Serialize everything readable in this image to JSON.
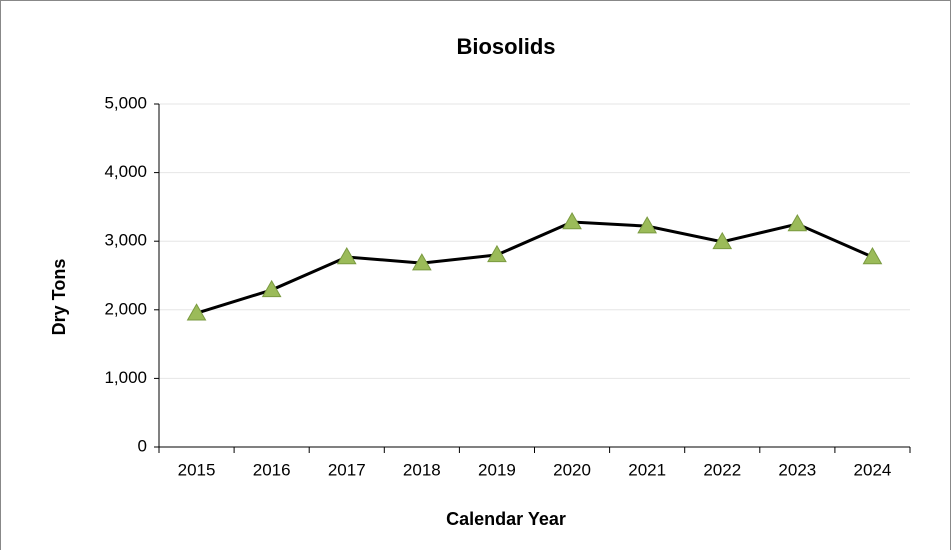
{
  "chart_data": {
    "type": "line",
    "title": "Biosolids",
    "xlabel": "Calendar Year",
    "ylabel": "Dry Tons",
    "categories": [
      "2015",
      "2016",
      "2017",
      "2018",
      "2019",
      "2020",
      "2021",
      "2022",
      "2023",
      "2024"
    ],
    "values": [
      1950,
      2290,
      2770,
      2680,
      2800,
      3280,
      3220,
      2990,
      3250,
      2770
    ],
    "color": "#000000",
    "marker": "triangle",
    "marker_color": "#9bbb59",
    "ylim": [
      0,
      5000
    ],
    "yticks": [
      0,
      {
        "value": 1000,
        "label": "1,000"
      },
      {
        "value": 2000,
        "label": "2,000"
      },
      {
        "value": 3000,
        "label": "3,000"
      },
      {
        "value": 4000,
        "label": "4,000"
      },
      {
        "value": 5000,
        "label": "5,000"
      }
    ],
    "grid": true
  }
}
